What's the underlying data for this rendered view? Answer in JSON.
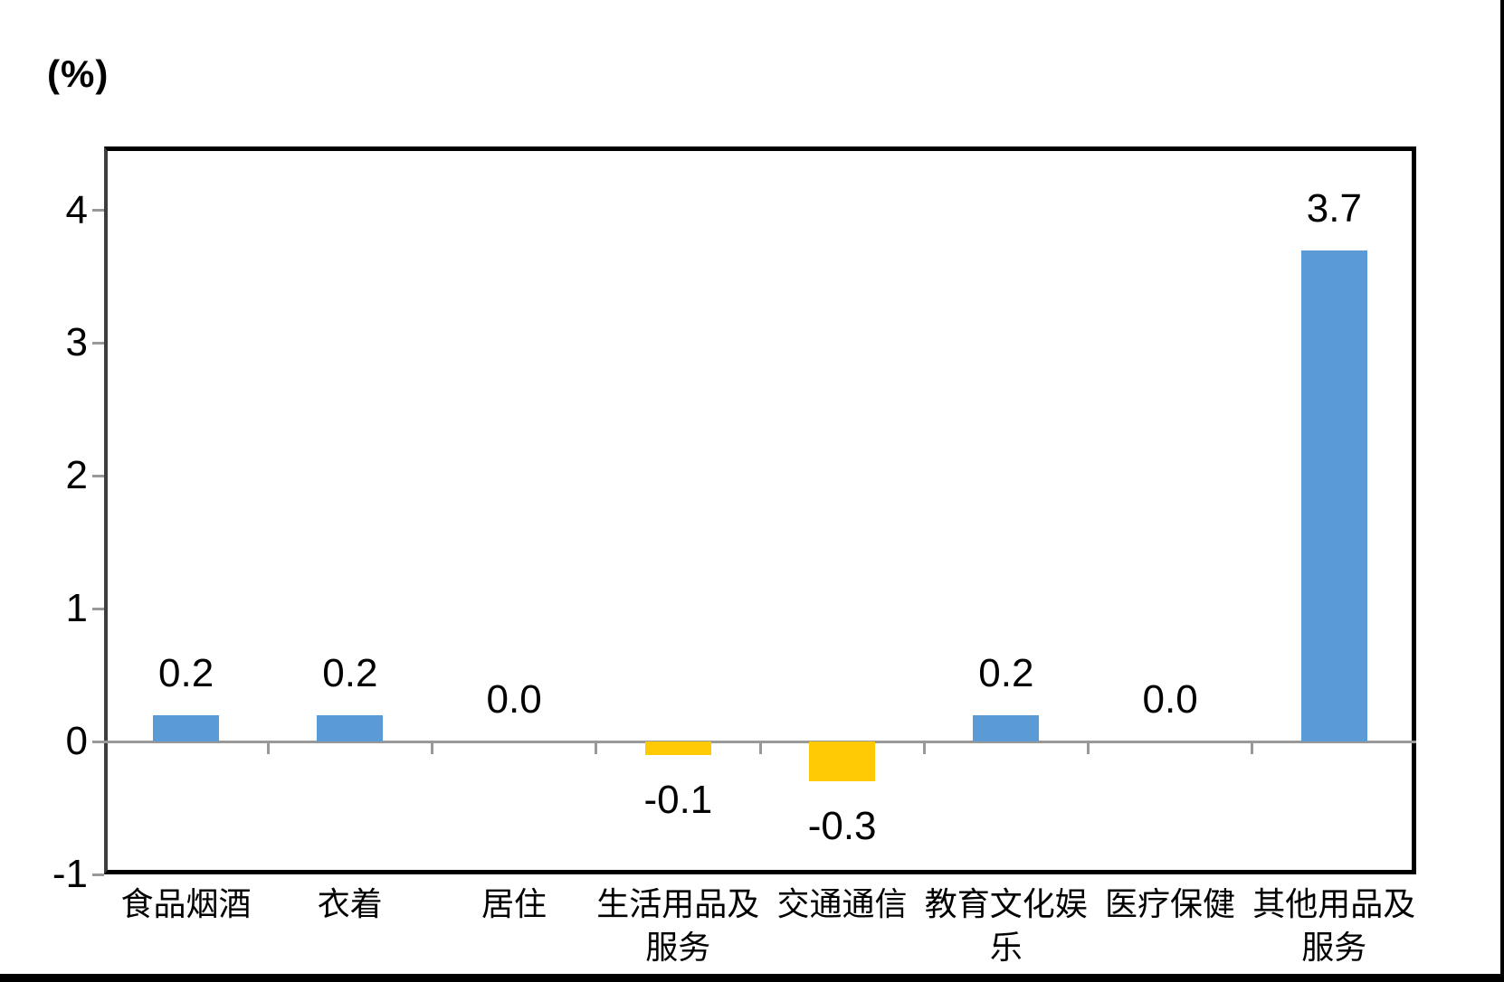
{
  "chart_data": {
    "type": "bar",
    "title": "",
    "unit_label": "(%)",
    "categories": [
      "食品烟酒",
      "衣着",
      "居住",
      "生活用品及服务",
      "交通通信",
      "教育文化娱乐",
      "医疗保健",
      "其他用品及服务"
    ],
    "values": [
      0.2,
      0.2,
      0.0,
      -0.1,
      -0.3,
      0.2,
      0.0,
      3.7
    ],
    "value_labels": [
      "0.2",
      "0.2",
      "0.0",
      "-0.1",
      "-0.3",
      "0.2",
      "0.0",
      "3.7"
    ],
    "positive_color": "#5B9BD5",
    "negative_color": "#FFC903",
    "bar_colors": [
      "#5B9BD5",
      "#5B9BD5",
      "#5B9BD5",
      "#FFC903",
      "#FFC903",
      "#5B9BD5",
      "#5B9BD5",
      "#5B9BD5"
    ],
    "ylim": [
      -1,
      4.48
    ],
    "yticks": [
      -1,
      0,
      1,
      2,
      3,
      4
    ],
    "ytick_labels": [
      "-1",
      "0",
      "1",
      "2",
      "3",
      "4"
    ],
    "xlabel": "",
    "ylabel": "(%)",
    "grid": "zero-line-only",
    "legend": "none",
    "axis_line_color": "#999999",
    "frame_color": "#000000"
  }
}
